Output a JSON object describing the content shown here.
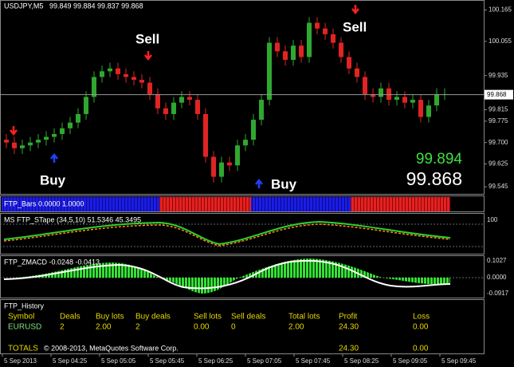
{
  "chart_data": {
    "type": "candlestick",
    "title": "USDJPY,M5",
    "ohlc_header": "99.849 99.884 99.837 99.868",
    "open": [
      99.71,
      99.7,
      99.68,
      99.69,
      99.7,
      99.71,
      99.72,
      99.73,
      99.75,
      99.77,
      99.8,
      99.86,
      99.93,
      99.95,
      99.96,
      99.94,
      99.93,
      99.92,
      99.91,
      99.87,
      99.82,
      99.8,
      99.84,
      99.86,
      99.85,
      99.8,
      99.65,
      99.58,
      99.63,
      99.62,
      99.69,
      99.71,
      99.78,
      99.85,
      100.05,
      100.02,
      99.99,
      100.04,
      100.0,
      100.12,
      100.1,
      100.08,
      100.05,
      100.0,
      99.96,
      99.93,
      99.87,
      99.86,
      99.89,
      99.85,
      99.86,
      99.84,
      99.85,
      99.79,
      99.83,
      99.87
    ],
    "high": [
      99.73,
      99.72,
      99.71,
      99.72,
      99.73,
      99.74,
      99.75,
      99.77,
      99.79,
      99.82,
      99.88,
      99.95,
      99.97,
      99.98,
      99.98,
      99.96,
      99.95,
      99.94,
      99.93,
      99.89,
      99.84,
      99.86,
      99.88,
      99.88,
      99.87,
      99.82,
      99.67,
      99.65,
      99.65,
      99.71,
      99.73,
      99.8,
      99.87,
      100.07,
      100.07,
      100.04,
      100.06,
      100.06,
      100.14,
      100.14,
      100.12,
      100.1,
      100.07,
      100.02,
      99.98,
      99.95,
      99.89,
      99.91,
      99.91,
      99.88,
      99.88,
      99.87,
      99.87,
      99.85,
      99.89,
      99.89
    ],
    "low": [
      99.68,
      99.66,
      99.66,
      99.67,
      99.68,
      99.69,
      99.7,
      99.71,
      99.73,
      99.75,
      99.78,
      99.84,
      99.91,
      99.93,
      99.92,
      99.91,
      99.9,
      99.89,
      99.85,
      99.8,
      99.78,
      99.78,
      99.82,
      99.83,
      99.78,
      99.63,
      99.56,
      99.56,
      99.6,
      99.6,
      99.67,
      99.69,
      99.76,
      99.83,
      100.0,
      99.97,
      99.97,
      99.98,
      99.98,
      100.08,
      100.06,
      100.03,
      99.98,
      99.94,
      99.91,
      99.85,
      99.84,
      99.84,
      99.83,
      99.83,
      99.82,
      99.82,
      99.77,
      99.77,
      99.81,
      99.85
    ],
    "close": [
      99.7,
      99.68,
      99.69,
      99.7,
      99.71,
      99.72,
      99.73,
      99.75,
      99.77,
      99.8,
      99.86,
      99.93,
      99.95,
      99.96,
      99.94,
      99.93,
      99.92,
      99.91,
      99.87,
      99.82,
      99.8,
      99.84,
      99.86,
      99.85,
      99.8,
      99.65,
      99.58,
      99.63,
      99.62,
      99.69,
      99.71,
      99.78,
      99.85,
      100.05,
      100.02,
      99.99,
      100.04,
      100.0,
      100.12,
      100.1,
      100.08,
      100.05,
      100.0,
      99.96,
      99.93,
      99.87,
      99.86,
      99.89,
      99.85,
      99.86,
      99.84,
      99.85,
      99.79,
      99.83,
      99.87,
      99.87
    ],
    "up_color": "#2fa82f",
    "down_color": "#e02424",
    "ylim": [
      99.52,
      100.2
    ],
    "yticks": [
      100.165,
      100.055,
      99.935,
      99.815,
      99.775,
      {
        "value": 99.7,
        "label": "99.700"
      },
      99.625,
      99.545
    ],
    "last_price": {
      "value": 99.868,
      "label": "99.868"
    },
    "bid_label": "99.894",
    "time_labels": [
      "5 Sep 2013",
      "5 Sep 04:25",
      "5 Sep 05:05",
      "5 Sep 05:45",
      "5 Sep 06:25",
      "5 Sep 07:05",
      "5 Sep 07:45",
      "5 Sep 08:25",
      "5 Sep 09:05",
      "5 Sep 09:45"
    ],
    "signals": [
      "Sell",
      "Sell",
      "Buy",
      "Buy"
    ]
  },
  "indicators": {
    "bars": "FTP_Bars 0.0000 1.0000",
    "stape": "MS FTP_STape (34,5,10) 51.5346 45.3495",
    "stape_scale": "100",
    "zmacd": "FTP_ZMACD -0.0248 -0.0413",
    "zmacd_scale": [
      "0.1027",
      "0.0000",
      "-0.0917"
    ]
  },
  "history": {
    "title": "FTP_History",
    "headers": [
      "Symbol",
      "Deals",
      "Buy lots",
      "Buy deals",
      "Sell lots",
      "Sell deals",
      "Total lots",
      "Profit",
      "Loss"
    ],
    "rows": [
      [
        "EURUSD",
        "2",
        "2.00",
        "2",
        "0.00",
        "0",
        "2.00",
        "24.30",
        "0.00"
      ]
    ],
    "totals_label": "TOTALS",
    "totals": [
      "24.30",
      "0.00"
    ],
    "copyright": "© 2008-2013, MetaQuotes Software Corp."
  }
}
